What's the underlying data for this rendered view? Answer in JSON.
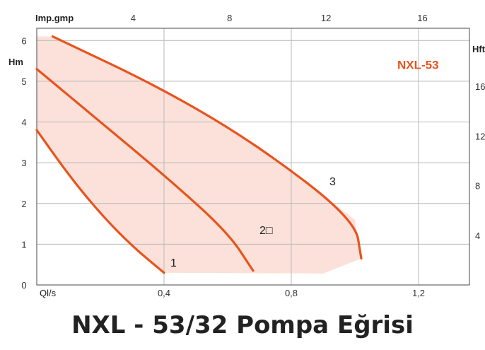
{
  "caption": "NXL - 53/32 Pompa Eğrisi",
  "colors": {
    "curve": "#e8531e",
    "fill": "#fbe1d9",
    "grid": "#b9b9b9",
    "model_label": "#e8531e"
  },
  "chart_data": {
    "type": "line",
    "model_label": "NXL-53",
    "x_bottom": {
      "label": "Ql/s",
      "ticks": [
        "0,4",
        "0,8",
        "1,2"
      ],
      "range": [
        0,
        1.36
      ]
    },
    "x_top": {
      "label": "Imp.gmp",
      "ticks": [
        "4",
        "8",
        "12",
        "16"
      ]
    },
    "y_left": {
      "label": "Hm",
      "ticks": [
        "0",
        "1",
        "2",
        "3",
        "4",
        "5",
        "6"
      ],
      "range": [
        0,
        6.3
      ]
    },
    "y_right": {
      "label": "Hft",
      "ticks": [
        "4",
        "8",
        "12",
        "16"
      ]
    },
    "series": [
      {
        "name": "1",
        "label": "1",
        "x": [
          0.0,
          0.1,
          0.2,
          0.3,
          0.4
        ],
        "y": [
          3.8,
          2.7,
          1.75,
          0.95,
          0.3
        ]
      },
      {
        "name": "2",
        "label": "2□",
        "x": [
          0.0,
          0.2,
          0.4,
          0.6,
          0.68
        ],
        "y": [
          5.3,
          4.0,
          2.7,
          1.3,
          0.35
        ]
      },
      {
        "name": "3",
        "label": "3",
        "x": [
          0.05,
          0.4,
          0.7,
          1.0,
          1.02
        ],
        "y": [
          6.1,
          4.8,
          3.4,
          1.6,
          0.65
        ]
      }
    ],
    "grid": true
  }
}
